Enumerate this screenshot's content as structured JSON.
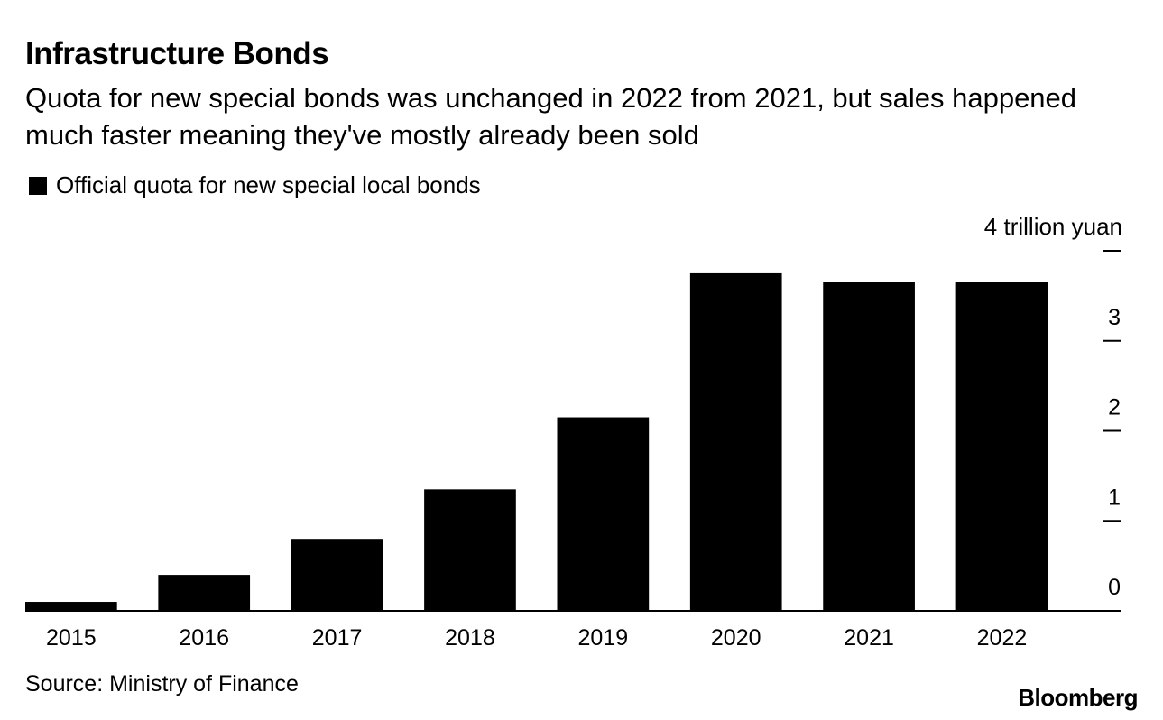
{
  "title": "Infrastructure Bonds",
  "subtitle": "Quota for new special bonds was unchanged in 2022 from 2021, but sales happened much faster meaning they've mostly already been sold",
  "legend_label": "Official quota for new special local bonds",
  "source": "Source: Ministry of Finance",
  "brand": "Bloomberg",
  "colors": {
    "bar": "#000000",
    "background": "#ffffff"
  },
  "chart_data": {
    "type": "bar",
    "title": "Infrastructure Bonds",
    "categories": [
      "2015",
      "2016",
      "2017",
      "2018",
      "2019",
      "2020",
      "2021",
      "2022"
    ],
    "series": [
      {
        "name": "Official quota for new special local bonds",
        "values": [
          0.1,
          0.4,
          0.8,
          1.35,
          2.15,
          3.75,
          3.65,
          3.65
        ]
      }
    ],
    "ylabel": "4 trillion yuan",
    "yticks": [
      0,
      1,
      2,
      3,
      4
    ],
    "ytick_labels": [
      "0",
      "1",
      "2",
      "3",
      ""
    ],
    "ylim": [
      0,
      4
    ],
    "unit_label": "4 trillion yuan",
    "yaxis_position": "right",
    "grid": false
  }
}
